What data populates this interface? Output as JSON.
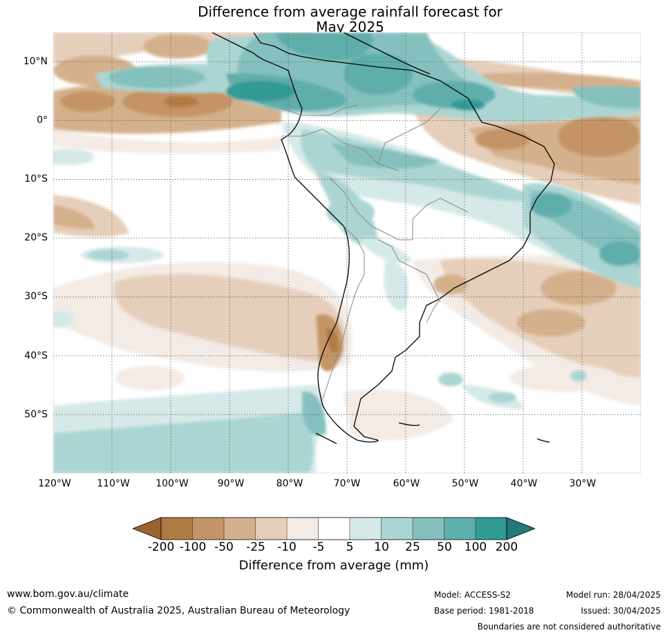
{
  "title": {
    "line1": "Difference from average rainfall forecast for",
    "line2": "May 2025"
  },
  "map": {
    "region": "South America",
    "lat_labels": [
      "10°N",
      "0°",
      "10°S",
      "20°S",
      "30°S",
      "40°S",
      "50°S"
    ],
    "lon_labels": [
      "120°W",
      "110°W",
      "100°W",
      "90°W",
      "80°W",
      "70°W",
      "60°W",
      "50°W",
      "40°W",
      "30°W"
    ],
    "lat_range": [
      -60,
      15
    ],
    "lon_range": [
      -120,
      -20
    ],
    "gridlines": "dotted",
    "projection": "equirectangular"
  },
  "colorbar": {
    "ticks": [
      "-200",
      "-100",
      "-50",
      "-25",
      "-10",
      "-5",
      "5",
      "10",
      "25",
      "50",
      "100",
      "200"
    ],
    "colors": [
      "#9a6230",
      "#b07a43",
      "#c49466",
      "#d4b18c",
      "#e6cfba",
      "#f3ebe5",
      "#ffffff",
      "#d5e9e8",
      "#abd5d3",
      "#84c1be",
      "#5eaeaa",
      "#319a95",
      "#237a76"
    ],
    "extend": "both",
    "label": "Difference from average (mm)"
  },
  "footer": {
    "url": "www.bom.gov.au/climate",
    "copyright": "© Commonwealth of Australia 2025, Australian Bureau of Meteorology",
    "model": "Model: ACCESS-S2",
    "base_period": "Base period: 1981-2018",
    "model_run": "Model run: 28/04/2025",
    "issued": "Issued: 30/04/2025",
    "boundaries_note": "Boundaries are not considered authoritative"
  }
}
